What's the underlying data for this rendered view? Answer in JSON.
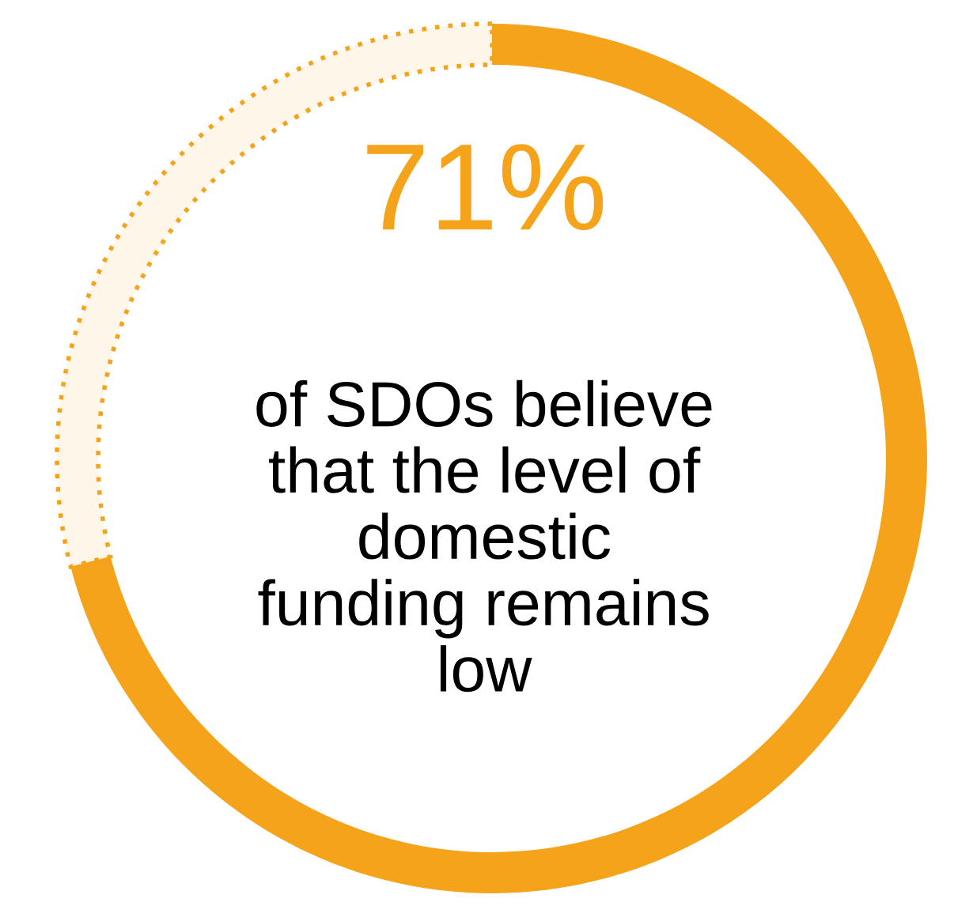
{
  "chart_data": {
    "type": "donut",
    "categories": [
      null,
      null
    ],
    "values": [
      71,
      29
    ],
    "colors": [
      "#f5a31a",
      "#f5a31a"
    ],
    "value_labels": [
      "71%",
      null
    ],
    "annotations": [
      "of SDOs believe\nthat the level of\ndomestic\nfunding remains\nlow"
    ]
  }
}
